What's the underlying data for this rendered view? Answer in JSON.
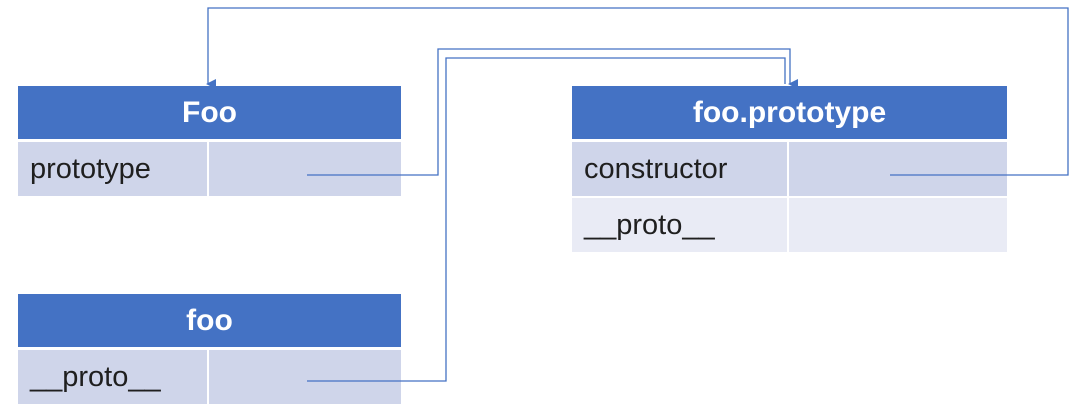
{
  "tables": {
    "foo_func": {
      "title": "Foo",
      "rows": [
        {
          "label": "prototype"
        }
      ]
    },
    "foo_instance": {
      "title": "foo",
      "rows": [
        {
          "label": "__proto__"
        }
      ]
    },
    "foo_prototype": {
      "title": "foo.prototype",
      "rows": [
        {
          "label": "constructor"
        },
        {
          "label": "__proto__"
        }
      ]
    }
  },
  "colors": {
    "header": "#4472c4",
    "row_dark": "#cfd5ea",
    "row_light": "#e9ebf5",
    "connector": "#4472c4"
  }
}
